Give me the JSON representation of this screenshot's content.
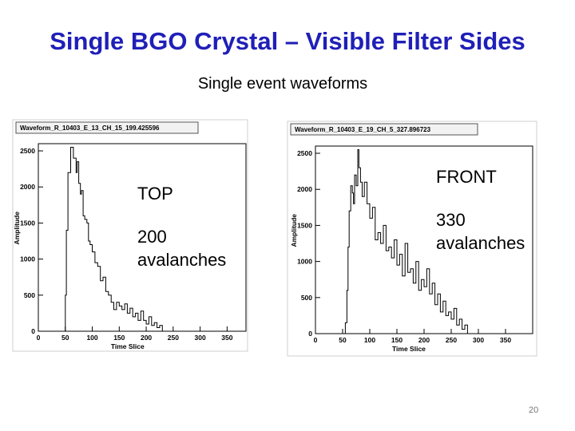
{
  "slide": {
    "title": "Single BGO Crystal – Visible Filter Sides",
    "subtitle": "Single event waveforms",
    "page_number": "20"
  },
  "chart_data": [
    {
      "type": "line",
      "title": "Waveform_R_10403_E_13_CH_15_199.425596",
      "xlabel": "Time Slice",
      "ylabel": "Amplitude",
      "xlim": [
        0,
        385
      ],
      "ylim": [
        0,
        2600
      ],
      "xticks": [
        0,
        50,
        100,
        150,
        200,
        250,
        300,
        350
      ],
      "yticks": [
        0,
        500,
        1000,
        1500,
        2000,
        2500
      ],
      "annotation": [
        "TOP",
        "200",
        "avalanches"
      ],
      "series": [
        {
          "x": [
            0,
            10,
            20,
            30,
            40,
            48,
            50,
            52,
            55,
            60,
            65,
            70,
            72,
            75,
            78,
            80,
            83,
            86,
            90,
            93,
            96,
            100,
            105,
            110,
            115,
            120,
            125,
            130,
            135,
            140,
            145,
            150,
            155,
            160,
            165,
            170,
            175,
            180,
            185,
            190,
            195,
            200,
            205,
            210,
            215,
            220,
            225,
            230,
            235,
            240,
            245,
            250,
            255,
            260,
            265,
            270,
            275,
            280,
            285,
            290,
            295,
            300,
            310,
            320,
            330,
            340,
            350,
            360,
            370,
            380
          ],
          "y": [
            0,
            0,
            0,
            0,
            0,
            0,
            500,
            1400,
            2200,
            2550,
            2400,
            2200,
            2350,
            2050,
            1900,
            1950,
            1600,
            1550,
            1500,
            1250,
            1200,
            1100,
            950,
            900,
            700,
            750,
            550,
            500,
            400,
            300,
            400,
            350,
            300,
            380,
            250,
            320,
            200,
            250,
            150,
            280,
            150,
            100,
            200,
            80,
            120,
            50,
            80,
            0,
            0,
            0,
            0,
            0,
            0,
            0,
            0,
            0,
            0,
            0,
            0,
            0,
            0,
            0,
            0,
            0,
            0,
            0,
            0,
            0,
            0,
            0
          ]
        }
      ]
    },
    {
      "type": "line",
      "title": "Waveform_R_10403_E_19_CH_5_327.896723",
      "xlabel": "Time Slice",
      "ylabel": "Amplitude",
      "xlim": [
        0,
        400
      ],
      "ylim": [
        0,
        2600
      ],
      "xticks": [
        0,
        50,
        100,
        150,
        200,
        250,
        300,
        350
      ],
      "yticks": [
        0,
        500,
        1000,
        1500,
        2000,
        2500
      ],
      "annotation": [
        "FRONT",
        "330",
        "avalanches"
      ],
      "series": [
        {
          "x": [
            0,
            10,
            20,
            30,
            40,
            50,
            55,
            58,
            60,
            62,
            65,
            68,
            70,
            72,
            75,
            78,
            80,
            83,
            86,
            90,
            95,
            100,
            105,
            110,
            115,
            120,
            125,
            130,
            135,
            140,
            145,
            150,
            155,
            160,
            165,
            170,
            175,
            180,
            185,
            190,
            195,
            200,
            205,
            210,
            215,
            220,
            225,
            230,
            235,
            240,
            245,
            250,
            255,
            260,
            265,
            270,
            275,
            280,
            285,
            290,
            300,
            310,
            320,
            330,
            340,
            350,
            360,
            370,
            380,
            390
          ],
          "y": [
            0,
            0,
            0,
            0,
            0,
            0,
            150,
            600,
            1200,
            1700,
            2050,
            1950,
            1800,
            2200,
            2050,
            2550,
            2300,
            2100,
            1900,
            2100,
            1800,
            1600,
            1750,
            1300,
            1400,
            1250,
            1500,
            1150,
            1200,
            1050,
            1300,
            950,
            1100,
            800,
            1250,
            850,
            900,
            700,
            1000,
            600,
            750,
            650,
            900,
            550,
            700,
            400,
            550,
            300,
            450,
            250,
            300,
            200,
            350,
            120,
            200,
            60,
            120,
            0,
            0,
            0,
            0,
            0,
            0,
            0,
            0,
            0,
            0,
            0,
            0,
            0
          ]
        }
      ]
    }
  ]
}
